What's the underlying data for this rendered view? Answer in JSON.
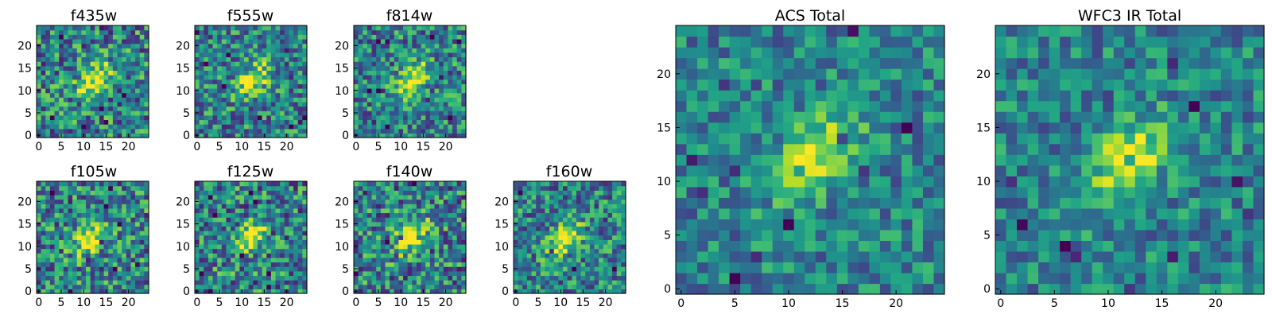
{
  "figure": {
    "panels": [
      {
        "id": "f435w",
        "title": "f435w"
      },
      {
        "id": "f555w",
        "title": "f555w"
      },
      {
        "id": "f814w",
        "title": "f814w"
      },
      {
        "id": "f105w",
        "title": "f105w"
      },
      {
        "id": "f125w",
        "title": "f125w"
      },
      {
        "id": "f140w",
        "title": "f140w"
      },
      {
        "id": "f160w",
        "title": "f160w"
      },
      {
        "id": "acs",
        "title": "ACS Total"
      },
      {
        "id": "wfc3",
        "title": "WFC3 IR Total"
      }
    ]
  },
  "chart_data": [
    {
      "type": "heatmap",
      "title": "f435w",
      "grid_size": [
        25,
        25
      ],
      "xlim": [
        0,
        24
      ],
      "ylim": [
        0,
        24
      ],
      "xticks": [
        0,
        5,
        10,
        15,
        20
      ],
      "yticks": [
        0,
        5,
        10,
        15,
        20
      ],
      "colormap": "viridis",
      "source_center": [
        12.5,
        12.5
      ],
      "source_peak": 1.0,
      "noise_level": 0.45,
      "seed": 11
    },
    {
      "type": "heatmap",
      "title": "f555w",
      "grid_size": [
        25,
        25
      ],
      "xlim": [
        0,
        24
      ],
      "ylim": [
        0,
        24
      ],
      "xticks": [
        0,
        5,
        10,
        15,
        20
      ],
      "yticks": [
        0,
        5,
        10,
        15,
        20
      ],
      "colormap": "viridis",
      "source_center": [
        12.5,
        12.5
      ],
      "source_peak": 1.0,
      "noise_level": 0.4,
      "seed": 22
    },
    {
      "type": "heatmap",
      "title": "f814w",
      "grid_size": [
        25,
        25
      ],
      "xlim": [
        0,
        24
      ],
      "ylim": [
        0,
        24
      ],
      "xticks": [
        0,
        5,
        10,
        15,
        20
      ],
      "yticks": [
        0,
        5,
        10,
        15,
        20
      ],
      "colormap": "viridis",
      "source_center": [
        12.5,
        12.5
      ],
      "source_peak": 1.0,
      "noise_level": 0.4,
      "seed": 33
    },
    {
      "type": "heatmap",
      "title": "f105w",
      "grid_size": [
        25,
        25
      ],
      "xlim": [
        0,
        24
      ],
      "ylim": [
        0,
        24
      ],
      "xticks": [
        0,
        5,
        10,
        15,
        20
      ],
      "yticks": [
        0,
        5,
        10,
        15,
        20
      ],
      "colormap": "viridis",
      "source_center": [
        11.5,
        12.0
      ],
      "source_peak": 1.0,
      "noise_level": 0.45,
      "seed": 44
    },
    {
      "type": "heatmap",
      "title": "f125w",
      "grid_size": [
        25,
        25
      ],
      "xlim": [
        0,
        24
      ],
      "ylim": [
        0,
        24
      ],
      "xticks": [
        0,
        5,
        10,
        15,
        20
      ],
      "yticks": [
        0,
        5,
        10,
        15,
        20
      ],
      "colormap": "viridis",
      "source_center": [
        12.0,
        12.0
      ],
      "source_peak": 1.0,
      "noise_level": 0.45,
      "seed": 55
    },
    {
      "type": "heatmap",
      "title": "f140w",
      "grid_size": [
        25,
        25
      ],
      "xlim": [
        0,
        24
      ],
      "ylim": [
        0,
        24
      ],
      "xticks": [
        0,
        5,
        10,
        15,
        20
      ],
      "yticks": [
        0,
        5,
        10,
        15,
        20
      ],
      "colormap": "viridis",
      "source_center": [
        12.5,
        12.5
      ],
      "source_peak": 1.0,
      "noise_level": 0.45,
      "seed": 66
    },
    {
      "type": "heatmap",
      "title": "f160w",
      "grid_size": [
        25,
        25
      ],
      "xlim": [
        0,
        24
      ],
      "ylim": [
        0,
        24
      ],
      "xticks": [
        0,
        5,
        10,
        15,
        20
      ],
      "yticks": [
        0,
        5,
        10,
        15,
        20
      ],
      "colormap": "viridis",
      "source_center": [
        10.5,
        11.5
      ],
      "source_peak": 1.0,
      "noise_level": 0.4,
      "seed": 77
    },
    {
      "type": "heatmap",
      "title": "ACS Total",
      "grid_size": [
        25,
        25
      ],
      "xlim": [
        0,
        24
      ],
      "ylim": [
        0,
        24
      ],
      "xticks": [
        0,
        5,
        10,
        15,
        20
      ],
      "yticks": [
        0,
        5,
        10,
        15,
        20
      ],
      "colormap": "viridis",
      "source_center": [
        12.5,
        12.5
      ],
      "source_peak": 1.0,
      "noise_level": 0.3,
      "seed": 88
    },
    {
      "type": "heatmap",
      "title": "WFC3 IR Total",
      "grid_size": [
        25,
        25
      ],
      "xlim": [
        0,
        24
      ],
      "ylim": [
        0,
        24
      ],
      "xticks": [
        0,
        5,
        10,
        15,
        20
      ],
      "yticks": [
        0,
        5,
        10,
        15,
        20
      ],
      "colormap": "viridis",
      "source_center": [
        12.0,
        12.0
      ],
      "source_peak": 1.0,
      "noise_level": 0.3,
      "seed": 99
    }
  ]
}
